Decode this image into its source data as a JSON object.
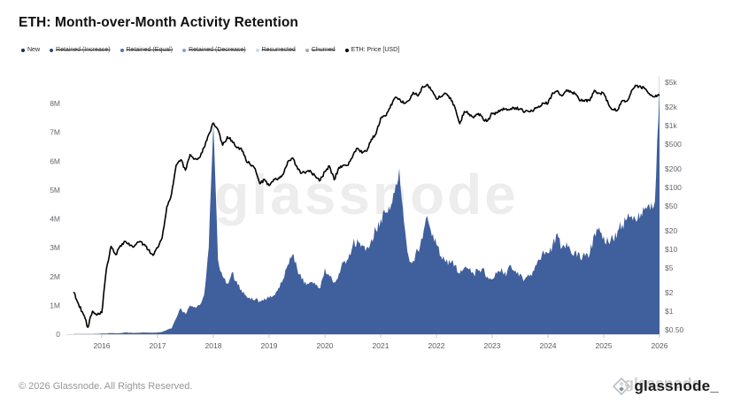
{
  "header": {
    "title": "ETH: Month-over-Month Activity Retention"
  },
  "legend": {
    "items": [
      {
        "label": "New",
        "color": "#1b2b53",
        "active": true
      },
      {
        "label": "Retained (Increase)",
        "color": "#2c4a88",
        "active": false
      },
      {
        "label": "Retained (Equal)",
        "color": "#4a72b0",
        "active": false
      },
      {
        "label": "Retained (Decrease)",
        "color": "#7fa3d3",
        "active": false
      },
      {
        "label": "Resurrected",
        "color": "#c9dced",
        "active": false
      },
      {
        "label": "Churned",
        "color": "#a9a9a9",
        "active": false
      },
      {
        "label": "ETH: Price [USD]",
        "color": "#000000",
        "active": true
      }
    ]
  },
  "watermark": "glassnode",
  "footer": {
    "copyright": "© 2026 Glassnode. All Rights Reserved.",
    "brand": "glassnode_"
  },
  "chart_data": {
    "type": "combo",
    "title": "ETH: Month-over-Month Activity Retention",
    "grid": false,
    "legend_position": "top-left",
    "start": {
      "year": 2015,
      "month": 7
    },
    "x_ticks": [
      2016,
      2017,
      2018,
      2019,
      2020,
      2021,
      2022,
      2023,
      2024,
      2025,
      2026
    ],
    "left_axis": {
      "unit": "addresses (millions)",
      "range": [
        0,
        8.9
      ],
      "ticks": [
        {
          "label": "0",
          "value": 0
        },
        {
          "label": "1M",
          "value": 1
        },
        {
          "label": "2M",
          "value": 2
        },
        {
          "label": "3M",
          "value": 3
        },
        {
          "label": "4M",
          "value": 4
        },
        {
          "label": "5M",
          "value": 5
        },
        {
          "label": "6M",
          "value": 6
        },
        {
          "label": "7M",
          "value": 7
        },
        {
          "label": "8M",
          "value": 8
        }
      ]
    },
    "right_axis": {
      "unit": "USD",
      "scale": "log",
      "range": [
        0.4,
        6000
      ],
      "ticks": [
        {
          "label": "$0.50",
          "value": 0.5
        },
        {
          "label": "$1",
          "value": 1
        },
        {
          "label": "$2",
          "value": 2
        },
        {
          "label": "$5",
          "value": 5
        },
        {
          "label": "$10",
          "value": 10
        },
        {
          "label": "$20",
          "value": 20
        },
        {
          "label": "$50",
          "value": 50
        },
        {
          "label": "$100",
          "value": 100
        },
        {
          "label": "$200",
          "value": 200
        },
        {
          "label": "$500",
          "value": 500
        },
        {
          "label": "$1k",
          "value": 1000
        },
        {
          "label": "$2k",
          "value": 2000
        },
        {
          "label": "$5k",
          "value": 5000
        }
      ]
    },
    "series": [
      {
        "name": "New",
        "type": "area",
        "axis": "left",
        "unit": "millions of addresses per month",
        "color": "#3f5f9d",
        "monthly_values": [
          0.005,
          0.01,
          0.01,
          0.01,
          0.01,
          0.012,
          0.02,
          0.025,
          0.04,
          0.03,
          0.035,
          0.06,
          0.05,
          0.045,
          0.05,
          0.06,
          0.055,
          0.05,
          0.06,
          0.08,
          0.15,
          0.2,
          0.55,
          0.9,
          0.7,
          1.0,
          0.95,
          1.0,
          1.35,
          3.0,
          7.3,
          2.6,
          2.0,
          1.75,
          2.15,
          1.85,
          1.55,
          1.35,
          1.2,
          1.2,
          1.15,
          1.25,
          1.25,
          1.35,
          1.6,
          1.9,
          2.4,
          2.75,
          2.3,
          1.9,
          1.7,
          1.8,
          1.7,
          1.6,
          2.3,
          2.0,
          1.8,
          2.1,
          2.5,
          2.6,
          3.1,
          3.3,
          3.1,
          3.0,
          3.3,
          3.6,
          4.0,
          4.2,
          4.3,
          4.9,
          5.75,
          3.9,
          2.7,
          2.55,
          2.9,
          3.3,
          4.1,
          3.4,
          3.1,
          2.7,
          2.5,
          2.45,
          2.4,
          2.1,
          2.3,
          2.25,
          2.1,
          2.2,
          2.3,
          2.0,
          1.9,
          2.1,
          2.3,
          2.0,
          2.4,
          2.2,
          2.1,
          1.9,
          2.0,
          2.2,
          2.6,
          2.9,
          2.8,
          3.1,
          3.5,
          3.0,
          3.2,
          2.8,
          2.9,
          2.6,
          2.7,
          2.8,
          3.5,
          3.7,
          3.4,
          3.2,
          3.3,
          3.6,
          3.8,
          4.0,
          4.1,
          3.9,
          4.2,
          4.4,
          4.3,
          4.6,
          8.5
        ]
      },
      {
        "name": "ETH: Price [USD]",
        "type": "line",
        "axis": "right",
        "unit": "USD",
        "color": "#000000",
        "monthly_values": [
          2.0,
          1.3,
          0.9,
          0.55,
          1.0,
          0.87,
          0.95,
          4.8,
          11.2,
          8.2,
          11.5,
          13.5,
          11.5,
          11.2,
          13.1,
          12.0,
          9.8,
          8.0,
          10.6,
          15.5,
          49,
          79,
          228,
          280,
          190,
          340,
          290,
          300,
          440,
          720,
          1100,
          860,
          480,
          660,
          570,
          440,
          430,
          280,
          230,
          200,
          115,
          135,
          107,
          135,
          142,
          162,
          260,
          300,
          215,
          170,
          180,
          180,
          150,
          130,
          180,
          220,
          133,
          210,
          230,
          228,
          320,
          430,
          360,
          385,
          600,
          740,
          1310,
          1420,
          1920,
          2770,
          2710,
          2270,
          2530,
          3430,
          3000,
          4290,
          4630,
          3680,
          2690,
          2920,
          3280,
          2820,
          1940,
          1070,
          1680,
          1550,
          1330,
          1570,
          1290,
          1200,
          1580,
          1600,
          1820,
          1870,
          1870,
          1930,
          1860,
          1650,
          1670,
          1800,
          2050,
          2280,
          2280,
          3380,
          3650,
          3010,
          3760,
          3440,
          3230,
          2520,
          2600,
          2520,
          3700,
          3330,
          3300,
          2240,
          1820,
          1790,
          2530,
          2480,
          3700,
          4400,
          4150,
          3900,
          3100,
          2900,
          3050
        ]
      }
    ]
  }
}
